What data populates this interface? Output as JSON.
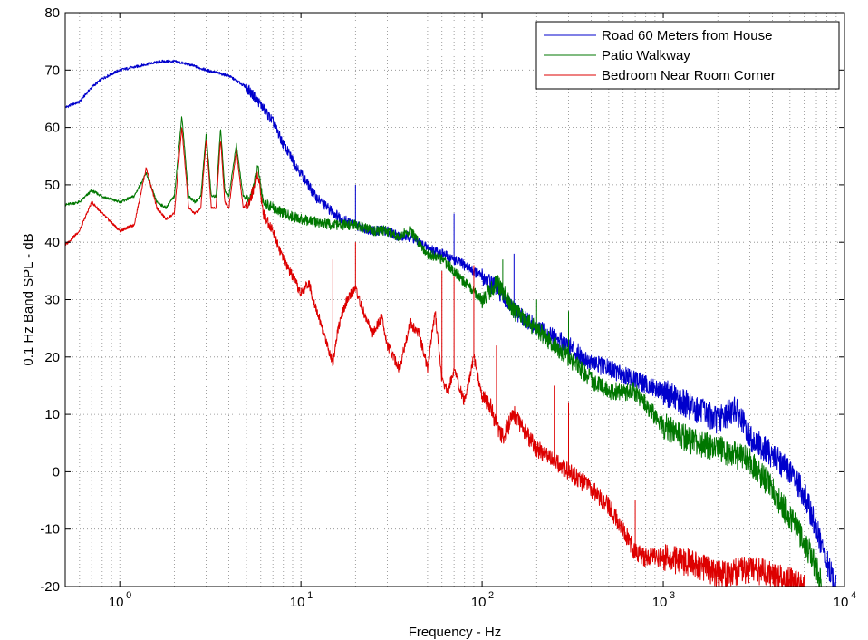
{
  "chart_data": {
    "type": "line",
    "title": "",
    "xlabel": "Frequency - Hz",
    "ylabel": "0.1 Hz Band SPL - dB",
    "xscale": "log",
    "xlim": [
      0.5,
      10000
    ],
    "ylim": [
      -20,
      80
    ],
    "xticks": [
      {
        "base": "10",
        "exp": "0"
      },
      {
        "base": "10",
        "exp": "1"
      },
      {
        "base": "10",
        "exp": "2"
      },
      {
        "base": "10",
        "exp": "3"
      },
      {
        "base": "10",
        "exp": "4"
      }
    ],
    "yticks": [
      "-20",
      "-10",
      "0",
      "10",
      "20",
      "30",
      "40",
      "50",
      "60",
      "70",
      "80"
    ],
    "grid": true,
    "legend_position": "top-right",
    "series": [
      {
        "name": "Road 60 Meters from House",
        "color": "#0000cc",
        "points": [
          [
            0.5,
            63.5
          ],
          [
            0.6,
            64.5
          ],
          [
            0.7,
            67
          ],
          [
            0.8,
            68.5
          ],
          [
            1.0,
            70
          ],
          [
            1.2,
            70.5
          ],
          [
            1.4,
            71
          ],
          [
            1.7,
            71.5
          ],
          [
            2.0,
            71.5
          ],
          [
            2.4,
            71
          ],
          [
            3.0,
            70
          ],
          [
            4.0,
            69
          ],
          [
            5.0,
            67
          ],
          [
            6.0,
            64
          ],
          [
            7.0,
            61
          ],
          [
            8.0,
            57
          ],
          [
            10.0,
            52
          ],
          [
            12.0,
            48
          ],
          [
            14.0,
            46
          ],
          [
            17.0,
            44
          ],
          [
            20.0,
            43
          ],
          [
            25.0,
            42
          ],
          [
            30.0,
            42
          ],
          [
            35.0,
            41
          ],
          [
            40.0,
            41
          ],
          [
            50.0,
            39
          ],
          [
            60.0,
            38
          ],
          [
            80.0,
            36
          ],
          [
            100.0,
            34
          ],
          [
            120.0,
            32
          ],
          [
            150.0,
            28
          ],
          [
            200.0,
            25
          ],
          [
            300.0,
            22
          ],
          [
            400.0,
            19
          ],
          [
            500.0,
            18
          ],
          [
            700.0,
            16
          ],
          [
            1000.0,
            14
          ],
          [
            1500.0,
            11
          ],
          [
            2000.0,
            9
          ],
          [
            2500.0,
            11
          ],
          [
            3000.0,
            6
          ],
          [
            4000.0,
            3
          ],
          [
            5000.0,
            0
          ],
          [
            6000.0,
            -4
          ],
          [
            7000.0,
            -10
          ],
          [
            8000.0,
            -16
          ],
          [
            9000.0,
            -20
          ]
        ],
        "spikes": [
          [
            20.0,
            50
          ],
          [
            70.0,
            45
          ],
          [
            150.0,
            38
          ]
        ]
      },
      {
        "name": "Patio Walkway",
        "color": "#007700",
        "points": [
          [
            0.5,
            46.5
          ],
          [
            0.6,
            47
          ],
          [
            0.7,
            49
          ],
          [
            0.8,
            48
          ],
          [
            1.0,
            47
          ],
          [
            1.2,
            48
          ],
          [
            1.4,
            52
          ],
          [
            1.6,
            47
          ],
          [
            1.8,
            46
          ],
          [
            2.0,
            48
          ],
          [
            2.2,
            62
          ],
          [
            2.4,
            48
          ],
          [
            2.6,
            47
          ],
          [
            2.8,
            48
          ],
          [
            3.0,
            59
          ],
          [
            3.2,
            48
          ],
          [
            3.4,
            48
          ],
          [
            3.6,
            60
          ],
          [
            3.8,
            49
          ],
          [
            4.0,
            48
          ],
          [
            4.4,
            57
          ],
          [
            4.8,
            48
          ],
          [
            5.2,
            47
          ],
          [
            5.8,
            53
          ],
          [
            6.2,
            47
          ],
          [
            7.0,
            46
          ],
          [
            8.0,
            45
          ],
          [
            10.0,
            44
          ],
          [
            15.0,
            43
          ],
          [
            20.0,
            43
          ],
          [
            25.0,
            42
          ],
          [
            30.0,
            42
          ],
          [
            35.0,
            41
          ],
          [
            40.0,
            42
          ],
          [
            50.0,
            38
          ],
          [
            60.0,
            37
          ],
          [
            70.0,
            35
          ],
          [
            80.0,
            33
          ],
          [
            100.0,
            30
          ],
          [
            120.0,
            33
          ],
          [
            150.0,
            28
          ],
          [
            200.0,
            25
          ],
          [
            250.0,
            22
          ],
          [
            300.0,
            20
          ],
          [
            400.0,
            16
          ],
          [
            500.0,
            14
          ],
          [
            700.0,
            14
          ],
          [
            1000.0,
            8
          ],
          [
            1500.0,
            5
          ],
          [
            2000.0,
            4
          ],
          [
            3000.0,
            2
          ],
          [
            4000.0,
            -3
          ],
          [
            5000.0,
            -8
          ],
          [
            6000.0,
            -12
          ],
          [
            7000.0,
            -17
          ],
          [
            7500.0,
            -20
          ]
        ],
        "spikes": [
          [
            130.0,
            37
          ],
          [
            200.0,
            30
          ],
          [
            300.0,
            28
          ]
        ]
      },
      {
        "name": "Bedroom Near Room Corner",
        "color": "#dd0000",
        "points": [
          [
            0.5,
            39.5
          ],
          [
            0.6,
            42
          ],
          [
            0.7,
            47
          ],
          [
            0.8,
            45
          ],
          [
            1.0,
            42
          ],
          [
            1.2,
            43
          ],
          [
            1.4,
            53
          ],
          [
            1.6,
            46
          ],
          [
            1.8,
            44
          ],
          [
            2.0,
            45
          ],
          [
            2.2,
            60
          ],
          [
            2.4,
            46
          ],
          [
            2.6,
            45
          ],
          [
            2.8,
            46
          ],
          [
            3.0,
            58
          ],
          [
            3.2,
            46
          ],
          [
            3.4,
            46
          ],
          [
            3.6,
            58
          ],
          [
            3.8,
            47
          ],
          [
            4.0,
            46
          ],
          [
            4.4,
            56
          ],
          [
            4.8,
            46
          ],
          [
            5.2,
            47
          ],
          [
            5.8,
            52
          ],
          [
            6.2,
            45
          ],
          [
            7.0,
            42
          ],
          [
            8.0,
            37
          ],
          [
            9.0,
            34
          ],
          [
            10.0,
            31
          ],
          [
            11.0,
            33
          ],
          [
            12.0,
            29
          ],
          [
            14.0,
            22
          ],
          [
            15.0,
            19
          ],
          [
            16.0,
            25
          ],
          [
            18.0,
            30
          ],
          [
            20.0,
            32
          ],
          [
            22.0,
            28
          ],
          [
            25.0,
            24
          ],
          [
            28.0,
            27
          ],
          [
            30.0,
            22
          ],
          [
            35.0,
            18
          ],
          [
            40.0,
            26
          ],
          [
            45.0,
            24
          ],
          [
            50.0,
            18
          ],
          [
            55.0,
            28
          ],
          [
            60.0,
            16
          ],
          [
            65.0,
            14
          ],
          [
            70.0,
            18
          ],
          [
            80.0,
            12
          ],
          [
            90.0,
            20
          ],
          [
            100.0,
            13
          ],
          [
            110.0,
            12
          ],
          [
            120.0,
            8
          ],
          [
            130.0,
            6
          ],
          [
            150.0,
            10
          ],
          [
            200.0,
            4
          ],
          [
            250.0,
            2
          ],
          [
            300.0,
            0
          ],
          [
            400.0,
            -3
          ],
          [
            500.0,
            -6
          ],
          [
            600.0,
            -10
          ],
          [
            700.0,
            -14
          ],
          [
            800.0,
            -15
          ],
          [
            1000.0,
            -15
          ],
          [
            1500.0,
            -16
          ],
          [
            2000.0,
            -18
          ],
          [
            3000.0,
            -17
          ],
          [
            4000.0,
            -18
          ],
          [
            5000.0,
            -19
          ],
          [
            6000.0,
            -20
          ]
        ],
        "spikes": [
          [
            15.0,
            37
          ],
          [
            20.0,
            40
          ],
          [
            60.0,
            35
          ],
          [
            70.0,
            34
          ],
          [
            90.0,
            36
          ],
          [
            120.0,
            22
          ],
          [
            250.0,
            15
          ],
          [
            300.0,
            12
          ],
          [
            700.0,
            -5
          ]
        ]
      }
    ]
  }
}
